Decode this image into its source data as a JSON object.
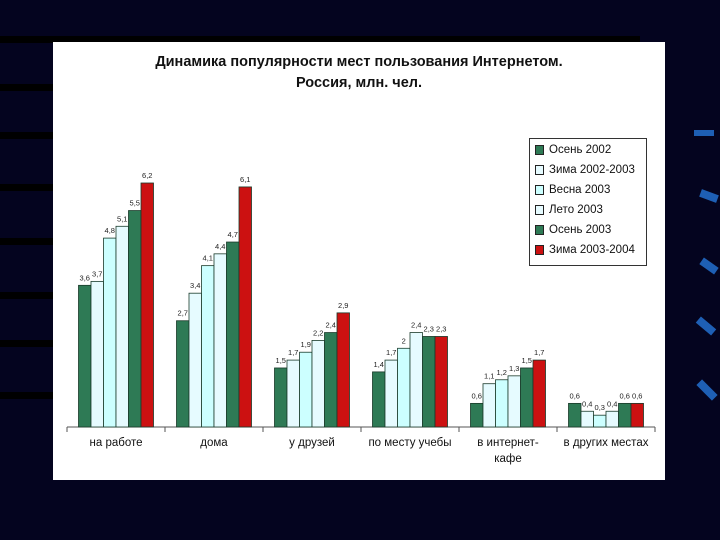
{
  "chart_data": {
    "type": "bar",
    "title": "Динамика популярности мест пользования Интернетом. Россия, млн. чел.",
    "title_lines": [
      "Динамика популярности мест пользования Интернетом.",
      "Россия, млн. чел."
    ],
    "categories": [
      [
        "на работе"
      ],
      [
        "дома"
      ],
      [
        "у друзей"
      ],
      [
        "по месту учебы"
      ],
      [
        "в интернет-",
        "кафе"
      ],
      [
        "в других местах"
      ]
    ],
    "series": [
      {
        "name": "Осень 2002",
        "color": "#2e7a55",
        "values": [
          3.6,
          2.7,
          1.5,
          1.4,
          0.6,
          0.6
        ]
      },
      {
        "name": "Зима 2002-2003",
        "color": "#e6fbff",
        "values": [
          3.7,
          3.4,
          1.7,
          1.7,
          1.1,
          0.4
        ]
      },
      {
        "name": "Весна 2003",
        "color": "#ccffff",
        "values": [
          4.8,
          4.1,
          1.9,
          2.0,
          1.2,
          0.3
        ]
      },
      {
        "name": "Лето 2003",
        "color": "#e6fbff",
        "values": [
          5.1,
          4.4,
          2.2,
          2.4,
          1.3,
          0.4
        ]
      },
      {
        "name": "Осень 2003",
        "color": "#2e7a55",
        "values": [
          5.5,
          4.7,
          2.4,
          2.3,
          1.5,
          0.6
        ]
      },
      {
        "name": "Зима 2003-2004",
        "color": "#cc1111",
        "values": [
          6.2,
          6.1,
          2.9,
          2.3,
          1.7,
          0.6
        ]
      }
    ],
    "ylim": [
      0,
      6.5
    ],
    "grid": false,
    "legend_position": "top-right"
  }
}
